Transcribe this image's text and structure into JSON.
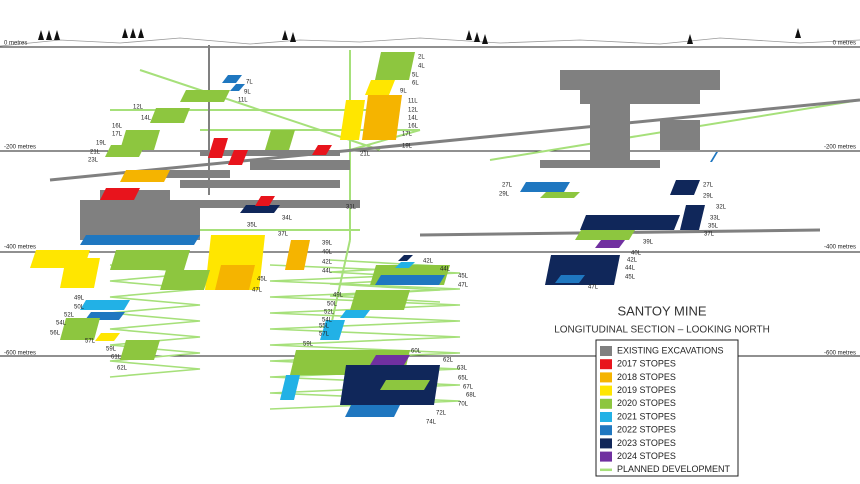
{
  "depth_labels": {
    "left": [
      "0 metres",
      "-200 metres",
      "-400 metres",
      "-600 metres"
    ],
    "right": [
      "0 metres",
      "-200 metres",
      "-400 metres",
      "-600 metres"
    ]
  },
  "levels": [
    "2L",
    "4L",
    "5L",
    "6L",
    "9L",
    "11L",
    "12L",
    "14L",
    "16L",
    "17L",
    "19L",
    "21L",
    "7L",
    "9L",
    "11L",
    "12L",
    "14L",
    "16L",
    "17L",
    "19L",
    "21L",
    "23L",
    "31L",
    "34L",
    "35L",
    "37L",
    "39L",
    "40L",
    "42L",
    "44L",
    "45L",
    "47L",
    "49L",
    "50L",
    "52L",
    "54L",
    "56L",
    "57L",
    "59L",
    "61L",
    "62L",
    "42L",
    "44L",
    "45L",
    "47L",
    "49L",
    "50L",
    "52L",
    "54L",
    "55L",
    "57L",
    "59L",
    "60L",
    "62L",
    "63L",
    "65L",
    "67L",
    "68L",
    "70L",
    "72L",
    "74L",
    "27L",
    "29L",
    "27L",
    "29L",
    "32L",
    "33L",
    "35L",
    "37L",
    "39L",
    "40L",
    "42L",
    "44L",
    "45L",
    "47L"
  ],
  "title": "SANTOY MINE",
  "subtitle": "LONGITUDINAL SECTION – LOOKING NORTH",
  "legend": [
    "EXISTING EXCAVATIONS",
    "2017 STOPES",
    "2018 STOPES",
    "2019 STOPES",
    "2020 STOPES",
    "2021 STOPES",
    "2022 STOPES",
    "2023 STOPES",
    "2024 STOPES",
    "PLANNED DEVELOPMENT"
  ]
}
